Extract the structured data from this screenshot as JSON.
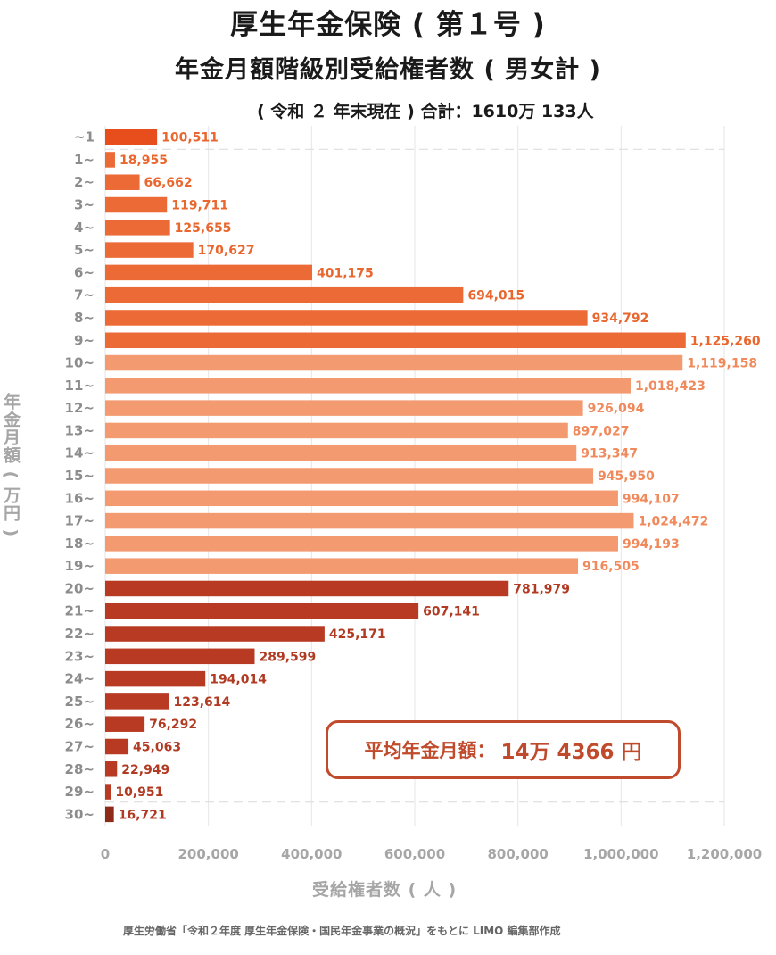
{
  "title_line1": "厚生年金保険 ( 第１号 )",
  "title_line2": "年金月額階級別受給権者数 ( 男女計 )",
  "subtitle": "( 令和 ２ 年末現在 ) 合計：1610万 133人",
  "average_box": {
    "label": "平均年金月額：",
    "value": "14万 4366 円"
  },
  "source": "厚生労働省「令和２年度 厚生年金保険・国民年金事業の概況」をもとに LIMO 編集部作成",
  "colors": {
    "group1": "#ec6a36",
    "group1_first": "#e84e1b",
    "group2": "#f39a70",
    "group3": "#b83a22",
    "group3_last": "#8e2a18",
    "label1": "#e9672f",
    "label2": "#f08a5c",
    "label3": "#b03a22"
  },
  "chart_data": {
    "type": "bar",
    "orientation": "horizontal",
    "title": "年金月額階級別受給権者数 ( 男女計 )",
    "xlabel": "受給権者数 ( 人 )",
    "ylabel": "年金月額 ( 万円 )",
    "xlim": [
      0,
      1200000
    ],
    "xticks": [
      0,
      200000,
      400000,
      600000,
      800000,
      1000000,
      1200000
    ],
    "xtick_labels": [
      "0",
      "200,000",
      "400,000",
      "600,000",
      "800,000",
      "1,000,000",
      "1,200,000"
    ],
    "categories": [
      "~1",
      "1~",
      "2~",
      "3~",
      "4~",
      "5~",
      "6~",
      "7~",
      "8~",
      "9~",
      "10~",
      "11~",
      "12~",
      "13~",
      "14~",
      "15~",
      "16~",
      "17~",
      "18~",
      "19~",
      "20~",
      "21~",
      "22~",
      "23~",
      "24~",
      "25~",
      "26~",
      "27~",
      "28~",
      "29~",
      "30~"
    ],
    "values": [
      100511,
      18955,
      66662,
      119711,
      125655,
      170627,
      401175,
      694015,
      934792,
      1125260,
      1119158,
      1018423,
      926094,
      897027,
      913347,
      945950,
      994107,
      1024472,
      994193,
      916505,
      781979,
      607141,
      425171,
      289599,
      194014,
      123614,
      76292,
      45063,
      22949,
      10951,
      16721
    ],
    "value_labels": [
      "100,511",
      "18,955",
      "66,662",
      "119,711",
      "125,655",
      "170,627",
      "401,175",
      "694,015",
      "934,792",
      "1,125,260",
      "1,119,158",
      "1,018,423",
      "926,094",
      "897,027",
      "913,347",
      "945,950",
      "994,107",
      "1,024,472",
      "994,193",
      "916,505",
      "781,979",
      "607,141",
      "425,171",
      "289,599",
      "194,014",
      "123,614",
      "76,292",
      "45,063",
      "22,949",
      "10,951",
      "16,721"
    ],
    "grid": "vertical"
  }
}
